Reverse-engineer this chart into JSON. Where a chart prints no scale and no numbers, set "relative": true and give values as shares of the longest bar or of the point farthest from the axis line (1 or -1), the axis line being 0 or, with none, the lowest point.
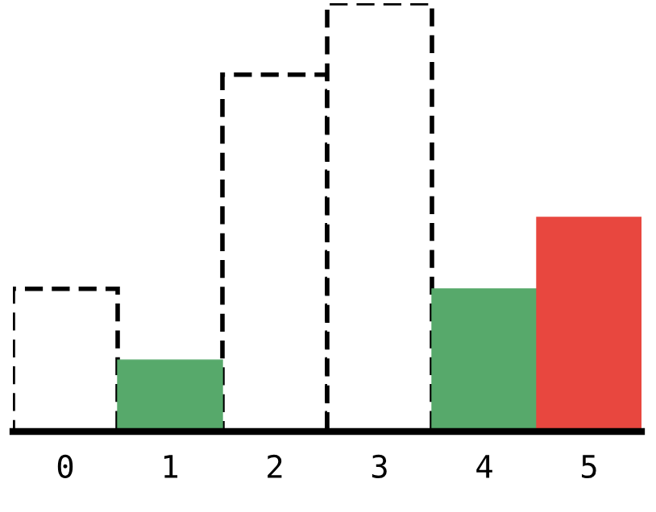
{
  "chart_data": {
    "type": "bar",
    "relative": true,
    "categories": [
      "0",
      "1",
      "2",
      "3",
      "4",
      "5"
    ],
    "series": [
      {
        "color": "#ffffff",
        "line_style": "dashed",
        "values": [
          0.333,
          null,
          0.833,
          1,
          null,
          null
        ]
      },
      {
        "color": "#57a96b",
        "line_style": "solid",
        "values": [
          null,
          0.167,
          null,
          null,
          0.333,
          null
        ]
      },
      {
        "color": "#e8473f",
        "line_style": "solid",
        "values": [
          null,
          null,
          null,
          null,
          null,
          0.5
        ]
      }
    ]
  }
}
